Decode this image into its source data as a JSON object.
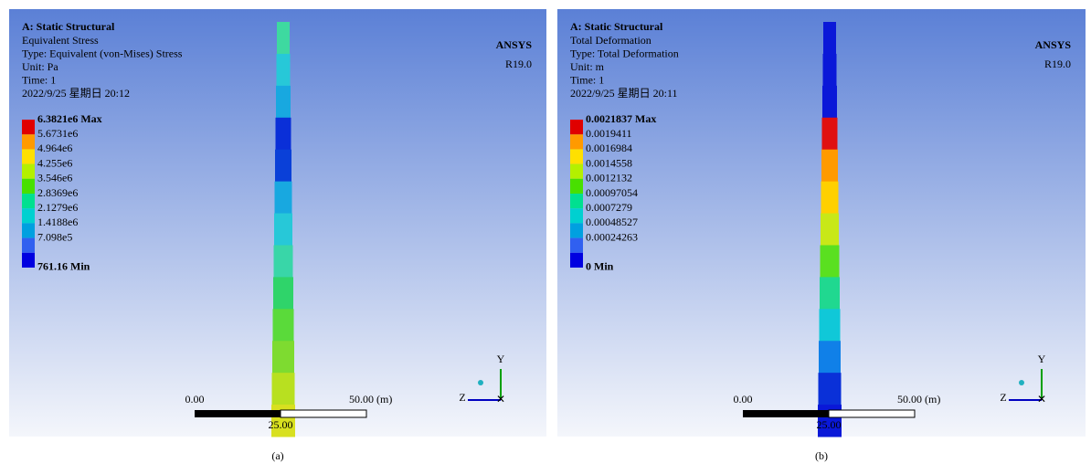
{
  "panels": [
    {
      "title": "A: Static Structural",
      "result": "Equivalent Stress",
      "type": "Type: Equivalent (von-Mises) Stress",
      "unit": "Unit: Pa",
      "time": "Time: 1",
      "date": "2022/9/25 星期日 20:12",
      "legend": [
        "6.3821e6 Max",
        "5.6731e6",
        "4.964e6",
        "4.255e6",
        "3.546e6",
        "2.8369e6",
        "2.1279e6",
        "1.4188e6",
        "7.098e5",
        "761.16 Min"
      ],
      "brand": "ANSYS",
      "version": "R19.0",
      "scale": {
        "start": "0.00",
        "mid": "25.00",
        "end": "50.00 (m)"
      },
      "axis_y": "Y",
      "axis_z": "Z",
      "caption": "(a)"
    },
    {
      "title": "A: Static Structural",
      "result": "Total Deformation",
      "type": "Type: Total Deformation",
      "unit": "Unit: m",
      "time": "Time: 1",
      "date": "2022/9/25 星期日 20:11",
      "legend": [
        "0.0021837 Max",
        "0.0019411",
        "0.0016984",
        "0.0014558",
        "0.0012132",
        "0.00097054",
        "0.0007279",
        "0.00048527",
        "0.00024263",
        "0 Min"
      ],
      "brand": "ANSYS",
      "version": "R19.0",
      "scale": {
        "start": "0.00",
        "mid": "25.00",
        "end": "50.00 (m)"
      },
      "axis_y": "Y",
      "axis_z": "Z",
      "caption": "(b)"
    }
  ]
}
